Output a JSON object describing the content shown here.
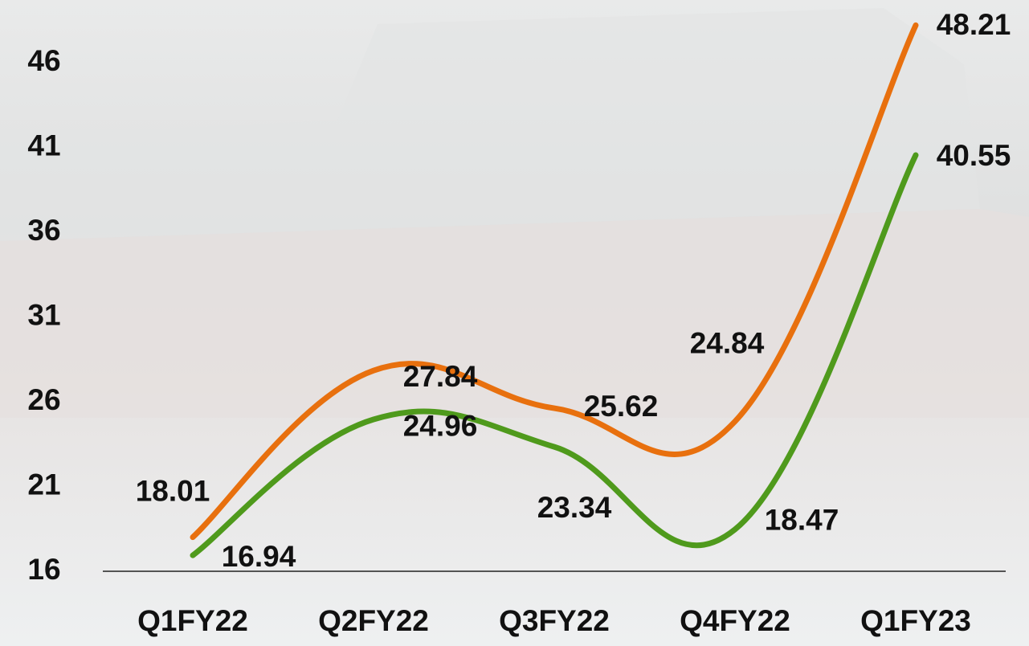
{
  "chart_data": {
    "type": "line",
    "categories": [
      "Q1FY22",
      "Q2FY22",
      "Q3FY22",
      "Q4FY22",
      "Q1FY23"
    ],
    "series": [
      {
        "color": "#e8700e",
        "values": [
          18.01,
          27.84,
          25.62,
          24.84,
          48.21
        ]
      },
      {
        "color": "#4f9a1c",
        "values": [
          16.94,
          24.96,
          23.34,
          18.47,
          40.55
        ]
      }
    ],
    "ylim": [
      16,
      49.7
    ],
    "yticks": [
      16,
      21,
      26,
      31,
      36,
      41,
      46
    ]
  }
}
